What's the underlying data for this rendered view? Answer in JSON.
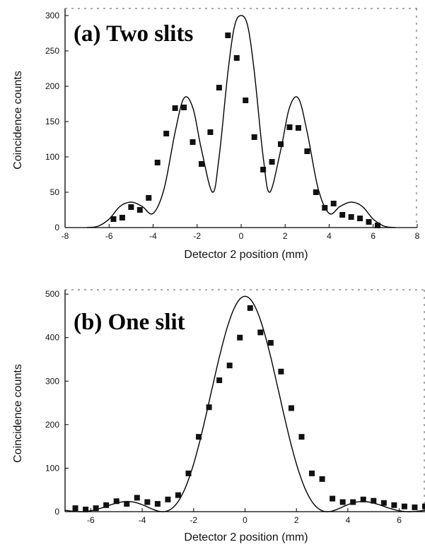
{
  "chart_data": [
    {
      "type": "scatter",
      "title": "(a) Two slits",
      "xlabel": "Detector 2 position (mm)",
      "ylabel": "Coincidence counts",
      "xlim": [
        -8,
        8
      ],
      "ylim": [
        0,
        310
      ],
      "xticks": [
        "-8",
        "-6",
        "-4",
        "-2",
        "0",
        "2",
        "4",
        "6",
        "8"
      ],
      "yticks": [
        "0",
        "50",
        "100",
        "150",
        "200",
        "250",
        "300"
      ],
      "series": [
        {
          "kind": "points",
          "x": [
            -5.8,
            -5.4,
            -5.0,
            -4.6,
            -4.2,
            -3.8,
            -3.4,
            -3.0,
            -2.6,
            -2.2,
            -1.8,
            -1.4,
            -1.0,
            -0.6,
            -0.2,
            0.2,
            0.6,
            1.0,
            1.4,
            1.8,
            2.2,
            2.6,
            3.0,
            3.4,
            3.8,
            4.2,
            4.6,
            5.0,
            5.4,
            5.8,
            6.2
          ],
          "y": [
            12,
            14,
            29,
            25,
            42,
            92,
            133,
            169,
            170,
            121,
            90,
            135,
            198,
            272,
            240,
            180,
            128,
            82,
            93,
            118,
            142,
            141,
            108,
            50,
            28,
            34,
            18,
            15,
            13,
            8,
            3
          ]
        },
        {
          "kind": "curve",
          "model": "two-slit",
          "x": [
            -7.0,
            -6.5,
            -6.0,
            -5.5,
            -5.0,
            -4.5,
            -4.0,
            -3.5,
            -3.0,
            -2.6,
            -2.2,
            -1.8,
            -1.3,
            -1.0,
            -0.6,
            -0.3,
            0,
            0.3,
            0.6,
            1.0,
            1.3,
            1.8,
            2.2,
            2.6,
            3.0,
            3.5,
            4.0,
            4.5,
            5.0,
            5.5,
            6.0,
            6.5,
            7.0
          ],
          "y": [
            0,
            2,
            12,
            30,
            36,
            30,
            20,
            55,
            135,
            183,
            170,
            110,
            50,
            100,
            220,
            285,
            300,
            285,
            220,
            100,
            50,
            110,
            170,
            183,
            135,
            55,
            20,
            30,
            36,
            30,
            12,
            2,
            0
          ]
        }
      ]
    },
    {
      "type": "scatter",
      "title": "(b) One slit",
      "xlabel": "Detector 2 position (mm)",
      "ylabel": "Coincidence counts",
      "xlim": [
        -7,
        7
      ],
      "ylim": [
        0,
        510
      ],
      "xticks": [
        "-6",
        "-4",
        "-2",
        "0",
        "2",
        "4",
        "6"
      ],
      "yticks": [
        "0",
        "100",
        "200",
        "300",
        "400",
        "500"
      ],
      "series": [
        {
          "kind": "points",
          "x": [
            -6.6,
            -6.2,
            -5.8,
            -5.4,
            -5.0,
            -4.6,
            -4.2,
            -3.8,
            -3.4,
            -3.0,
            -2.6,
            -2.2,
            -1.8,
            -1.4,
            -1.0,
            -0.6,
            -0.2,
            0.2,
            0.6,
            1.0,
            1.4,
            1.8,
            2.2,
            2.6,
            3.0,
            3.4,
            3.8,
            4.2,
            4.6,
            5.0,
            5.4,
            5.8,
            6.2,
            6.6,
            7.0
          ],
          "y": [
            8,
            5,
            8,
            15,
            24,
            18,
            32,
            22,
            18,
            28,
            38,
            88,
            172,
            240,
            302,
            336,
            400,
            468,
            412,
            388,
            322,
            238,
            172,
            88,
            75,
            30,
            22,
            22,
            28,
            25,
            20,
            15,
            12,
            10,
            12
          ]
        },
        {
          "kind": "curve",
          "model": "single-slit"
        }
      ]
    }
  ]
}
